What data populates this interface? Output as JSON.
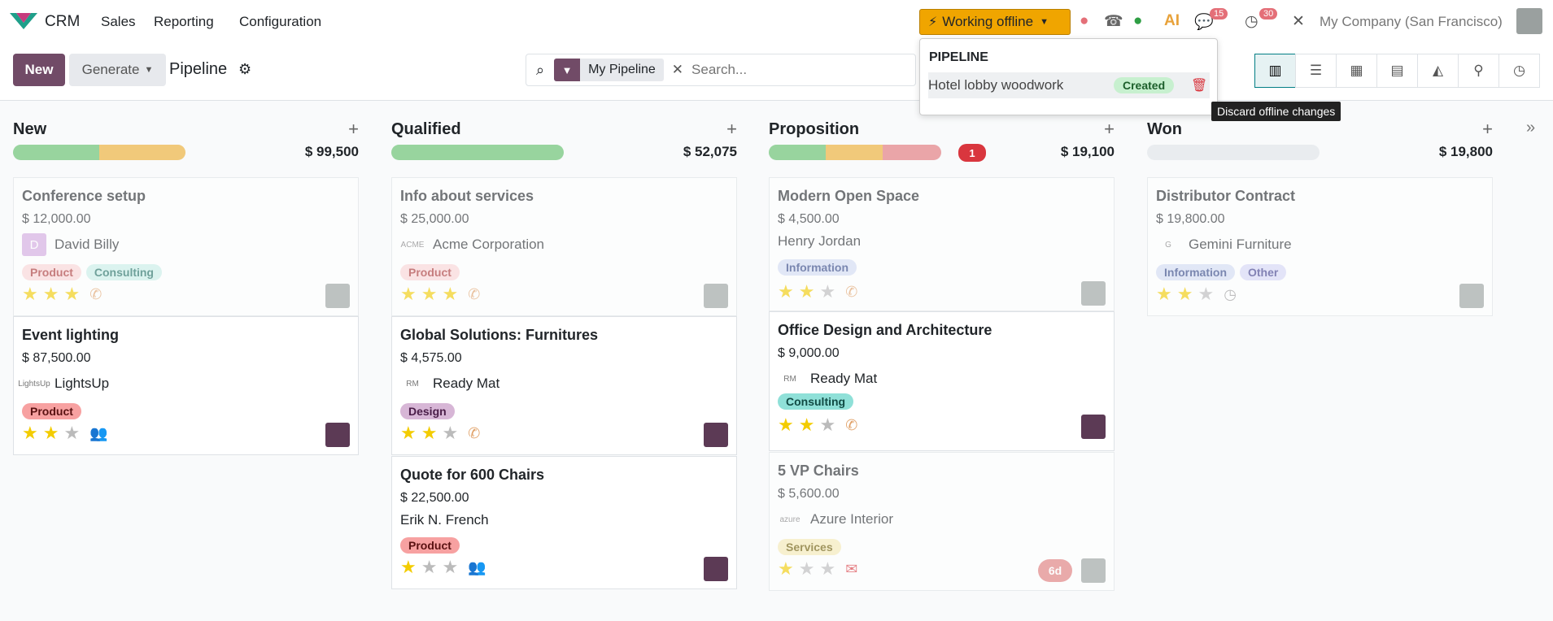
{
  "navbar": {
    "app": "CRM",
    "menus": [
      "Sales",
      "Reporting",
      "Configuration"
    ],
    "offline_label": "Working offline",
    "msg_count": "15",
    "activity_count": "30",
    "company": "My Company (San Francisco)"
  },
  "control": {
    "new_label": "New",
    "generate_label": "Generate",
    "breadcrumb": "Pipeline",
    "facet": "My Pipeline",
    "search_placeholder": "Search..."
  },
  "dropdown": {
    "header": "PIPELINE",
    "item": "Hotel lobby woodwork",
    "status": "Created",
    "tooltip": "Discard offline changes"
  },
  "columns": [
    {
      "title": "New",
      "total": "$ 99,500",
      "progress": [
        {
          "color": "#98d49e",
          "frac": 0.5
        },
        {
          "color": "#f1c97a",
          "frac": 0.5
        }
      ],
      "cards": [
        {
          "title": "Conference setup",
          "amount": "$ 12,000.00",
          "partner": "David Billy",
          "partner_logo": "D",
          "tags": [
            {
              "label": "Product",
              "bg": "#fbd6d6",
              "fg": "#a83232"
            },
            {
              "label": "Consulting",
              "bg": "#c9efe9",
              "fg": "#1b6b60"
            }
          ],
          "stars": 3,
          "activity": "phone-icon",
          "faded": true
        },
        {
          "title": "Event lighting",
          "amount": "$ 87,500.00",
          "partner": "LightsUp",
          "partner_logo": "LightsUp",
          "tags": [
            {
              "label": "Product",
              "bg": "#f7a1a1",
              "fg": "#5a1212"
            }
          ],
          "stars": 2,
          "activity": "group-icon",
          "faded": false
        }
      ]
    },
    {
      "title": "Qualified",
      "total": "$ 52,075",
      "progress": [
        {
          "color": "#98d49e",
          "frac": 1
        }
      ],
      "cards": [
        {
          "title": "Info about services",
          "amount": "$ 25,000.00",
          "partner": "Acme Corporation",
          "partner_logo": "ACME",
          "tags": [
            {
              "label": "Product",
              "bg": "#fbd6d6",
              "fg": "#a83232"
            }
          ],
          "stars": 3,
          "activity": "phone-icon",
          "faded": true
        },
        {
          "title": "Global Solutions: Furnitures",
          "amount": "$ 4,575.00",
          "partner": "Ready Mat",
          "partner_logo": "RM",
          "tags": [
            {
              "label": "Design",
              "bg": "#d7b6d6",
              "fg": "#4a1d48"
            }
          ],
          "stars": 2,
          "activity": "phone-icon",
          "faded": false
        },
        {
          "title": "Quote for 600 Chairs",
          "amount": "$ 22,500.00",
          "partner": "Erik N. French",
          "partner_logo": "",
          "tags": [
            {
              "label": "Product",
              "bg": "#f7a1a1",
              "fg": "#5a1212"
            }
          ],
          "stars": 1,
          "activity": "group-icon",
          "faded": false
        }
      ]
    },
    {
      "title": "Proposition",
      "total": "$ 19,100",
      "count": "1",
      "progress": [
        {
          "color": "#98d49e",
          "frac": 0.33
        },
        {
          "color": "#f1c97a",
          "frac": 0.33
        },
        {
          "color": "#eaa5a8",
          "frac": 0.34
        }
      ],
      "cards": [
        {
          "title": "Modern Open Space",
          "amount": "$ 4,500.00",
          "partner": "Henry Jordan",
          "partner_logo": "",
          "tags": [
            {
              "label": "Information",
              "bg": "#d3dcf4",
              "fg": "#2d4183"
            }
          ],
          "stars": 2,
          "activity": "phone-icon",
          "faded": true
        },
        {
          "title": "Office Design and Architecture",
          "amount": "$ 9,000.00",
          "partner": "Ready Mat",
          "partner_logo": "RM",
          "tags": [
            {
              "label": "Consulting",
              "bg": "#8fe0d8",
              "fg": "#114a44"
            }
          ],
          "stars": 2,
          "activity": "phone-icon",
          "faded": false
        },
        {
          "title": "5 VP Chairs",
          "amount": "$ 5,600.00",
          "partner": "Azure Interior",
          "partner_logo": "azure",
          "tags": [
            {
              "label": "Services",
              "bg": "#f7ebb5",
              "fg": "#6b5800"
            }
          ],
          "stars": 1,
          "activity": "email-icon",
          "late": "6d",
          "faded": true
        }
      ]
    },
    {
      "title": "Won",
      "total": "$ 19,800",
      "progress": [],
      "cards": [
        {
          "title": "Distributor Contract",
          "amount": "$ 19,800.00",
          "partner": "Gemini Furniture",
          "partner_logo": "G",
          "tags": [
            {
              "label": "Information",
              "bg": "#d3dcf4",
              "fg": "#2d4183"
            },
            {
              "label": "Other",
              "bg": "#d7d7f7",
              "fg": "#3a3a8a"
            }
          ],
          "stars": 2,
          "activity": "clock-icon",
          "faded": true
        }
      ]
    }
  ]
}
